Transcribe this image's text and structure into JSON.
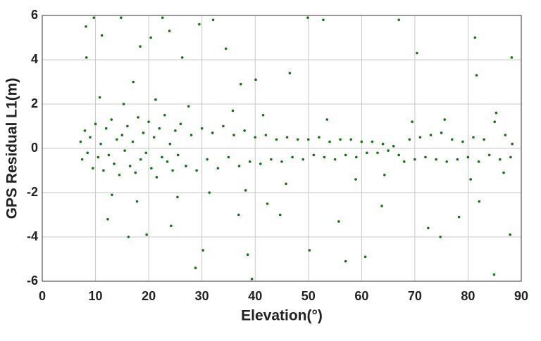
{
  "chart_data": {
    "type": "scatter",
    "x_label": "Elevation(°)",
    "y_label": "GPS Residual L1(m)",
    "color": "#0a7a0a",
    "xlim": [
      0,
      90
    ],
    "xticks": [
      0,
      10,
      20,
      30,
      40,
      50,
      60,
      70,
      80,
      90
    ],
    "ylim": [
      -6,
      6
    ],
    "yticks": [
      -6,
      -4,
      -2,
      0,
      2,
      4,
      6
    ],
    "grid": true,
    "x": [
      7.2,
      7.5,
      8,
      8.5,
      9,
      9.5,
      10,
      10.5,
      11,
      11.5,
      12,
      12.5,
      13,
      13.5,
      14,
      14.5,
      15,
      15.5,
      16,
      16.5,
      17,
      17.5,
      18,
      18.5,
      19,
      19.5,
      20,
      20.5,
      21,
      21.5,
      22,
      22.5,
      23,
      23.5,
      24,
      24.5,
      25,
      25.5,
      26,
      27,
      28,
      29,
      30,
      31,
      32,
      33,
      34,
      35,
      36,
      37,
      38,
      39,
      40,
      41,
      42,
      43,
      44,
      45,
      46,
      47,
      48,
      49,
      50,
      51,
      52,
      53,
      54,
      55,
      56,
      57,
      58,
      59,
      60,
      61,
      62,
      63,
      64,
      65,
      66,
      67,
      68,
      69,
      70,
      71,
      72,
      73,
      74,
      75,
      76,
      77,
      78,
      79,
      80,
      81,
      82,
      83,
      84,
      85,
      86,
      87,
      88,
      88.3,
      8.2,
      8.3,
      9.7,
      11.2,
      12.3,
      14.8,
      16.2,
      17.1,
      18.4,
      19.6,
      20.4,
      22.6,
      23.9,
      24.2,
      26.3,
      28.8,
      29.5,
      30.2,
      32.1,
      34.5,
      36.9,
      37.3,
      38.6,
      39.4,
      40.1,
      42.3,
      44.7,
      46.5,
      49.9,
      50.2,
      52.8,
      55.7,
      57.0,
      60.7,
      63.8,
      67.0,
      70.4,
      72.5,
      74.8,
      78.3,
      81.3,
      81.6,
      82.1,
      84.9,
      87.9,
      88.2,
      10.8,
      13.1,
      15.3,
      17.8,
      21.3,
      25.4,
      27.5,
      31.4,
      35.8,
      38.2,
      41.5,
      45.8,
      53.5,
      58.9,
      64.3,
      69.5,
      75.6,
      80.5,
      85.3,
      86.7
    ],
    "values": [
      0.3,
      -0.5,
      0.8,
      -0.2,
      0.5,
      -0.9,
      1.1,
      -0.4,
      0.2,
      -1.0,
      0.9,
      -0.3,
      1.3,
      -0.7,
      0.4,
      -1.2,
      0.6,
      -0.1,
      1.0,
      -0.8,
      0.3,
      -1.1,
      1.4,
      -0.5,
      0.7,
      -0.2,
      1.2,
      -0.9,
      0.5,
      -1.3,
      0.9,
      -0.4,
      1.5,
      -0.6,
      0.2,
      -1.0,
      0.8,
      -0.3,
      1.1,
      -0.8,
      0.6,
      -1.0,
      0.9,
      -0.5,
      0.7,
      -0.9,
      1.0,
      -0.4,
      0.6,
      -0.8,
      0.8,
      -0.6,
      0.5,
      -0.7,
      0.6,
      -0.5,
      0.4,
      -0.6,
      0.5,
      -0.4,
      0.4,
      -0.5,
      0.4,
      -0.3,
      0.5,
      -0.4,
      0.3,
      -0.5,
      0.4,
      -0.3,
      0.4,
      -0.4,
      0.3,
      -0.2,
      0.3,
      -0.2,
      0.2,
      -0.1,
      0.1,
      -0.3,
      -0.6,
      0.4,
      -0.5,
      0.5,
      -0.4,
      0.6,
      -0.5,
      0.7,
      -0.6,
      0.4,
      -0.5,
      0.3,
      -0.4,
      0.5,
      -0.6,
      0.4,
      -0.3,
      1.2,
      -0.5,
      0.6,
      -0.4,
      0.2,
      5.5,
      4.1,
      5.9,
      5.1,
      -3.2,
      5.9,
      -4.0,
      3.0,
      4.6,
      -3.9,
      5.0,
      5.9,
      5.3,
      -3.5,
      4.1,
      -5.4,
      5.6,
      -4.6,
      5.8,
      4.5,
      -3.0,
      2.9,
      -4.8,
      -5.9,
      3.1,
      -2.5,
      -3.0,
      3.4,
      5.9,
      -4.6,
      5.8,
      -3.3,
      -5.1,
      -4.9,
      -2.6,
      5.8,
      4.3,
      -3.6,
      -4.0,
      -3.1,
      5.0,
      3.3,
      -2.4,
      -5.7,
      -3.9,
      4.1,
      2.3,
      -2.1,
      2.0,
      -2.4,
      2.2,
      -2.2,
      1.9,
      -2.0,
      1.7,
      -1.9,
      1.5,
      -1.6,
      1.3,
      -1.4,
      -1.2,
      1.2,
      1.3,
      -1.4,
      1.6,
      -1.1
    ]
  }
}
